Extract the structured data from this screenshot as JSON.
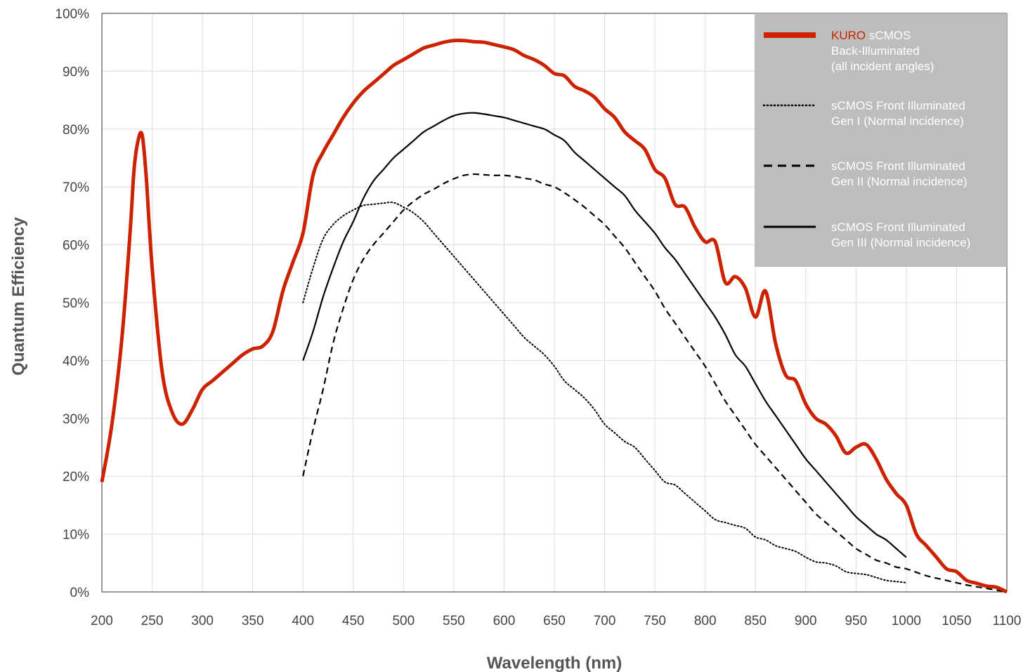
{
  "chart_data": {
    "type": "line",
    "xlabel": "Wavelength (nm)",
    "ylabel": "Quantum Efficiency",
    "xlim": [
      200,
      1100
    ],
    "ylim": [
      0,
      100
    ],
    "x_ticks": [
      "200",
      "250",
      "300",
      "350",
      "400",
      "450",
      "500",
      "550",
      "600",
      "650",
      "700",
      "750",
      "800",
      "850",
      "900",
      "950",
      "1000",
      "1050",
      "1100"
    ],
    "y_ticks": [
      "0%",
      "10%",
      "20%",
      "30%",
      "40%",
      "50%",
      "60%",
      "70%",
      "80%",
      "90%",
      "100%"
    ],
    "grid": true,
    "legend_position": "top-right",
    "colors": {
      "kuro": "#cc2200",
      "black": "#000000",
      "legend_bg": "#bdbdbd",
      "grid": "#dddddd"
    },
    "legend": [
      {
        "series": "kuro",
        "style": "thick-solid",
        "lines": [
          [
            "KURO",
            " sCMOS"
          ],
          [
            "Back-Illuminated"
          ],
          [
            "(all incident angles)"
          ]
        ]
      },
      {
        "series": "gen1",
        "style": "dotted",
        "lines": [
          [
            "sCMOS Front Illuminated"
          ],
          [
            "Gen I (Normal incidence)"
          ]
        ]
      },
      {
        "series": "gen2",
        "style": "dashed",
        "lines": [
          [
            "sCMOS Front Illuminated"
          ],
          [
            "Gen II (Normal incidence)"
          ]
        ]
      },
      {
        "series": "gen3",
        "style": "solid",
        "lines": [
          [
            "sCMOS Front Illuminated"
          ],
          [
            "Gen III (Normal incidence)"
          ]
        ]
      }
    ],
    "series": [
      {
        "key": "kuro",
        "style": "thick-solid",
        "points": [
          [
            200,
            19
          ],
          [
            210,
            29
          ],
          [
            220,
            44
          ],
          [
            228,
            62
          ],
          [
            232,
            73
          ],
          [
            236,
            78
          ],
          [
            240,
            79
          ],
          [
            244,
            72
          ],
          [
            250,
            56
          ],
          [
            260,
            38
          ],
          [
            270,
            31
          ],
          [
            280,
            29
          ],
          [
            290,
            31.5
          ],
          [
            300,
            35
          ],
          [
            310,
            36.5
          ],
          [
            320,
            38
          ],
          [
            330,
            39.5
          ],
          [
            340,
            41
          ],
          [
            350,
            42
          ],
          [
            360,
            42.5
          ],
          [
            370,
            45
          ],
          [
            380,
            52
          ],
          [
            390,
            57
          ],
          [
            400,
            62
          ],
          [
            410,
            72
          ],
          [
            420,
            76
          ],
          [
            430,
            79
          ],
          [
            440,
            82
          ],
          [
            450,
            84.5
          ],
          [
            460,
            86.5
          ],
          [
            470,
            88
          ],
          [
            480,
            89.5
          ],
          [
            490,
            91
          ],
          [
            500,
            92
          ],
          [
            510,
            93
          ],
          [
            520,
            94
          ],
          [
            530,
            94.5
          ],
          [
            540,
            95
          ],
          [
            550,
            95.3
          ],
          [
            560,
            95.3
          ],
          [
            570,
            95.1
          ],
          [
            580,
            95
          ],
          [
            590,
            94.6
          ],
          [
            600,
            94.2
          ],
          [
            610,
            93.7
          ],
          [
            620,
            92.7
          ],
          [
            630,
            92
          ],
          [
            640,
            91
          ],
          [
            650,
            89.6
          ],
          [
            660,
            89.2
          ],
          [
            670,
            87.4
          ],
          [
            680,
            86.6
          ],
          [
            690,
            85.5
          ],
          [
            700,
            83.5
          ],
          [
            710,
            82
          ],
          [
            720,
            79.5
          ],
          [
            730,
            78
          ],
          [
            740,
            76.5
          ],
          [
            750,
            73
          ],
          [
            760,
            71.5
          ],
          [
            770,
            67
          ],
          [
            780,
            66.5
          ],
          [
            790,
            63
          ],
          [
            800,
            60.5
          ],
          [
            810,
            60.5
          ],
          [
            820,
            53.5
          ],
          [
            830,
            54.5
          ],
          [
            840,
            52.5
          ],
          [
            850,
            47.5
          ],
          [
            860,
            52
          ],
          [
            870,
            43
          ],
          [
            880,
            37.5
          ],
          [
            890,
            36.5
          ],
          [
            900,
            32.5
          ],
          [
            910,
            30
          ],
          [
            920,
            29
          ],
          [
            930,
            27
          ],
          [
            940,
            24
          ],
          [
            950,
            25
          ],
          [
            960,
            25.5
          ],
          [
            970,
            23
          ],
          [
            980,
            19.5
          ],
          [
            990,
            17
          ],
          [
            1000,
            15
          ],
          [
            1010,
            10
          ],
          [
            1020,
            8
          ],
          [
            1030,
            6
          ],
          [
            1040,
            4
          ],
          [
            1050,
            3.5
          ],
          [
            1060,
            2
          ],
          [
            1070,
            1.5
          ],
          [
            1080,
            1
          ],
          [
            1090,
            0.8
          ],
          [
            1100,
            0
          ]
        ]
      },
      {
        "key": "gen1",
        "style": "dotted",
        "points": [
          [
            400,
            50
          ],
          [
            410,
            56
          ],
          [
            420,
            61
          ],
          [
            430,
            63.5
          ],
          [
            440,
            65
          ],
          [
            450,
            66
          ],
          [
            460,
            66.8
          ],
          [
            470,
            67
          ],
          [
            480,
            67.2
          ],
          [
            490,
            67.3
          ],
          [
            500,
            66.5
          ],
          [
            510,
            65.5
          ],
          [
            520,
            64
          ],
          [
            530,
            62
          ],
          [
            540,
            60
          ],
          [
            550,
            58
          ],
          [
            560,
            56
          ],
          [
            570,
            54
          ],
          [
            580,
            52
          ],
          [
            590,
            50
          ],
          [
            600,
            48
          ],
          [
            610,
            46
          ],
          [
            620,
            44
          ],
          [
            630,
            42.5
          ],
          [
            640,
            41
          ],
          [
            650,
            39
          ],
          [
            660,
            36.5
          ],
          [
            670,
            35
          ],
          [
            680,
            33.5
          ],
          [
            690,
            31.5
          ],
          [
            700,
            29
          ],
          [
            710,
            27.5
          ],
          [
            720,
            26
          ],
          [
            730,
            25
          ],
          [
            740,
            23
          ],
          [
            750,
            21
          ],
          [
            760,
            19
          ],
          [
            770,
            18.5
          ],
          [
            780,
            17
          ],
          [
            790,
            15.5
          ],
          [
            800,
            14
          ],
          [
            810,
            12.5
          ],
          [
            820,
            12
          ],
          [
            830,
            11.5
          ],
          [
            840,
            11
          ],
          [
            850,
            9.5
          ],
          [
            860,
            9
          ],
          [
            870,
            8
          ],
          [
            880,
            7.5
          ],
          [
            890,
            7
          ],
          [
            900,
            6
          ],
          [
            910,
            5.2
          ],
          [
            920,
            5
          ],
          [
            930,
            4.5
          ],
          [
            940,
            3.5
          ],
          [
            950,
            3.2
          ],
          [
            960,
            3
          ],
          [
            970,
            2.5
          ],
          [
            980,
            2
          ],
          [
            990,
            1.8
          ],
          [
            1000,
            1.6
          ]
        ]
      },
      {
        "key": "gen2",
        "style": "dashed",
        "points": [
          [
            400,
            20
          ],
          [
            410,
            28
          ],
          [
            420,
            35
          ],
          [
            430,
            43
          ],
          [
            440,
            49
          ],
          [
            450,
            54
          ],
          [
            460,
            57.5
          ],
          [
            470,
            60
          ],
          [
            480,
            62
          ],
          [
            490,
            64
          ],
          [
            500,
            66
          ],
          [
            510,
            67.5
          ],
          [
            520,
            68.7
          ],
          [
            530,
            69.6
          ],
          [
            540,
            70.6
          ],
          [
            550,
            71.4
          ],
          [
            560,
            72
          ],
          [
            570,
            72.2
          ],
          [
            580,
            72.1
          ],
          [
            590,
            72
          ],
          [
            600,
            72
          ],
          [
            610,
            71.8
          ],
          [
            620,
            71.5
          ],
          [
            630,
            71.2
          ],
          [
            640,
            70.5
          ],
          [
            650,
            70
          ],
          [
            660,
            69
          ],
          [
            670,
            67.8
          ],
          [
            680,
            66.5
          ],
          [
            690,
            65
          ],
          [
            700,
            63.5
          ],
          [
            710,
            61.5
          ],
          [
            720,
            59.5
          ],
          [
            730,
            57
          ],
          [
            740,
            54.5
          ],
          [
            750,
            52
          ],
          [
            760,
            49
          ],
          [
            770,
            46.5
          ],
          [
            780,
            44
          ],
          [
            790,
            41.5
          ],
          [
            800,
            39
          ],
          [
            810,
            36
          ],
          [
            820,
            33
          ],
          [
            830,
            30.5
          ],
          [
            840,
            28
          ],
          [
            850,
            25.5
          ],
          [
            860,
            23.5
          ],
          [
            870,
            21.5
          ],
          [
            880,
            19.5
          ],
          [
            890,
            17.5
          ],
          [
            900,
            15.5
          ],
          [
            910,
            13.5
          ],
          [
            920,
            12
          ],
          [
            930,
            10.5
          ],
          [
            940,
            9
          ],
          [
            950,
            7.5
          ],
          [
            960,
            6.5
          ],
          [
            970,
            5.5
          ],
          [
            980,
            5
          ],
          [
            990,
            4.3
          ],
          [
            1000,
            4
          ],
          [
            1020,
            2.8
          ],
          [
            1040,
            2
          ],
          [
            1060,
            1.2
          ],
          [
            1080,
            0.6
          ],
          [
            1100,
            0
          ]
        ]
      },
      {
        "key": "gen3",
        "style": "solid",
        "points": [
          [
            400,
            40
          ],
          [
            410,
            45
          ],
          [
            420,
            51
          ],
          [
            430,
            56
          ],
          [
            440,
            60.5
          ],
          [
            450,
            64
          ],
          [
            460,
            68
          ],
          [
            470,
            71
          ],
          [
            480,
            73
          ],
          [
            490,
            75
          ],
          [
            500,
            76.5
          ],
          [
            510,
            78
          ],
          [
            520,
            79.5
          ],
          [
            530,
            80.5
          ],
          [
            540,
            81.5
          ],
          [
            550,
            82.3
          ],
          [
            560,
            82.7
          ],
          [
            570,
            82.8
          ],
          [
            580,
            82.6
          ],
          [
            590,
            82.3
          ],
          [
            600,
            82
          ],
          [
            610,
            81.5
          ],
          [
            620,
            81
          ],
          [
            630,
            80.5
          ],
          [
            640,
            80
          ],
          [
            650,
            79
          ],
          [
            660,
            78
          ],
          [
            670,
            76
          ],
          [
            680,
            74.5
          ],
          [
            690,
            73
          ],
          [
            700,
            71.5
          ],
          [
            710,
            70
          ],
          [
            720,
            68.5
          ],
          [
            730,
            66
          ],
          [
            740,
            64
          ],
          [
            750,
            62
          ],
          [
            760,
            59.5
          ],
          [
            770,
            57.5
          ],
          [
            780,
            55
          ],
          [
            790,
            52.5
          ],
          [
            800,
            50
          ],
          [
            810,
            47.5
          ],
          [
            820,
            44.5
          ],
          [
            830,
            41
          ],
          [
            840,
            39
          ],
          [
            850,
            36
          ],
          [
            860,
            33
          ],
          [
            870,
            30.5
          ],
          [
            880,
            28
          ],
          [
            890,
            25.5
          ],
          [
            900,
            23
          ],
          [
            910,
            21
          ],
          [
            920,
            19
          ],
          [
            930,
            17
          ],
          [
            940,
            15
          ],
          [
            950,
            13
          ],
          [
            960,
            11.5
          ],
          [
            970,
            10
          ],
          [
            980,
            9
          ],
          [
            990,
            7.5
          ],
          [
            1000,
            6
          ]
        ]
      }
    ]
  }
}
